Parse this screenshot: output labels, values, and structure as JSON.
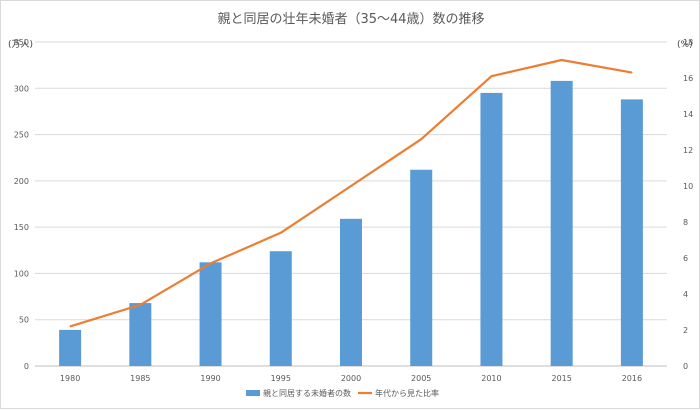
{
  "chart_data": {
    "type": "bar",
    "title": "親と同居の壮年未婚者（35～44歳）数の推移",
    "left_unit": "(万人)",
    "right_unit": "(%)",
    "categories": [
      "1980",
      "1985",
      "1990",
      "1995",
      "2000",
      "2005",
      "2010",
      "2015",
      "2016"
    ],
    "series": [
      {
        "name": "親と同居する未婚者の数",
        "type": "bar",
        "axis": "left",
        "color": "#5b9bd5",
        "values": [
          39,
          68,
          112,
          124,
          159,
          212,
          295,
          308,
          288
        ]
      },
      {
        "name": "年代から見た比率",
        "type": "line",
        "axis": "right",
        "color": "#ed7d31",
        "values": [
          2.2,
          3.4,
          5.7,
          7.4,
          10.0,
          12.6,
          16.1,
          17.0,
          16.3
        ]
      }
    ],
    "y_left": {
      "min": 0,
      "max": 350,
      "step": 50
    },
    "y_right": {
      "min": 0,
      "max": 18,
      "step": 2
    },
    "grid": true,
    "legend_position": "bottom"
  }
}
